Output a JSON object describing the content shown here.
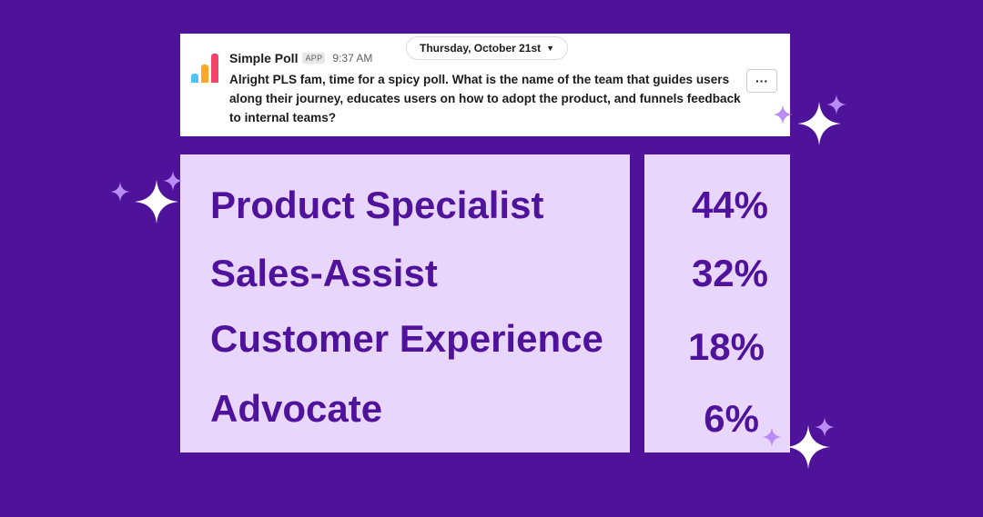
{
  "message": {
    "app_name": "Simple Poll",
    "app_badge": "APP",
    "time": "9:37 AM",
    "date_divider": "Thursday, October 21st",
    "text": "Alright PLS fam, time for a spicy poll. What is the name of the team that guides users along their journey, educates users on how to adopt the product, and funnels feedback to internal teams?",
    "more_actions_label": "···",
    "more_icon": "more-horizontal-icon",
    "chevron_icon": "chevron-down-icon"
  },
  "poll": {
    "options": [
      {
        "label": "Product Specialist",
        "percent": "44%"
      },
      {
        "label": "Sales-Assist",
        "percent": "32%"
      },
      {
        "label": "Customer Experience",
        "percent": "18%"
      },
      {
        "label": "Advocate",
        "percent": "6%"
      }
    ]
  },
  "colors": {
    "background": "#4f139b",
    "panel": "#e8d6fc",
    "text_accent": "#4f139b",
    "sparkle_white": "#ffffff",
    "sparkle_light": "#b98cf5"
  }
}
